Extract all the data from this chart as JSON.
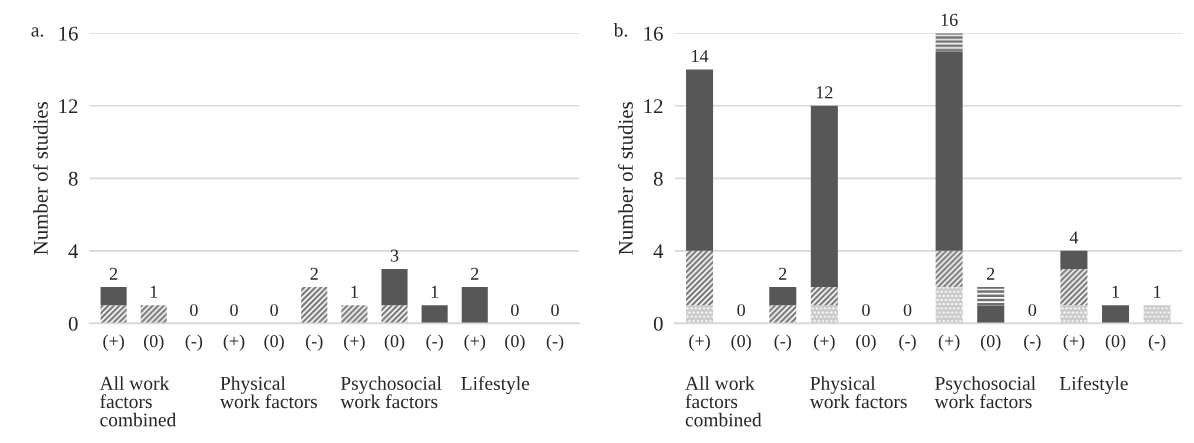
{
  "chart_data": [
    {
      "type": "bar",
      "title": "a.",
      "ylabel": "Number of studies",
      "stacked": true,
      "categories": [
        "(+)",
        "(0)",
        "(-)",
        "(+)",
        "(0)",
        "(-)",
        "(+)",
        "(0)",
        "(-)",
        "(+)",
        "(0)",
        "(-)"
      ],
      "series": [
        {
          "color": "#7a7a7a",
          "values": [
            1,
            1,
            0,
            0,
            0,
            2,
            1,
            1,
            0,
            0,
            0,
            0
          ]
        },
        {
          "color": "#575757",
          "values": [
            1,
            0,
            0,
            0,
            0,
            0,
            0,
            2,
            1,
            2,
            0,
            0
          ]
        }
      ],
      "totals": [
        "2",
        "1",
        "0",
        "0",
        "0",
        "2",
        "1",
        "3",
        "1",
        "2",
        "0",
        "0"
      ],
      "annotations": [
        "All work\nfactors\ncombined",
        "Physical\nwork factors",
        "Psychosocial\nwork factors",
        "Lifestyle"
      ],
      "ylim": [
        0,
        16
      ],
      "yticks": [
        0,
        4,
        8,
        12,
        16
      ],
      "grid": "y",
      "legend": false
    },
    {
      "type": "bar",
      "title": "b.",
      "ylabel": "Number of studies",
      "stacked": true,
      "categories": [
        "(+)",
        "(0)",
        "(-)",
        "(+)",
        "(0)",
        "(-)",
        "(+)",
        "(0)",
        "(-)",
        "(+)",
        "(0)",
        "(-)"
      ],
      "series": [
        {
          "color": "#c8c8c8",
          "values": [
            1,
            0,
            0,
            1,
            0,
            0,
            2,
            0,
            0,
            1,
            0,
            1
          ]
        },
        {
          "color": "#7a7a7a",
          "values": [
            3,
            0,
            1,
            1,
            0,
            0,
            2,
            0,
            0,
            2,
            0,
            0
          ]
        },
        {
          "color": "#575757",
          "values": [
            10,
            0,
            1,
            10,
            0,
            0,
            11,
            1,
            0,
            1,
            1,
            0
          ]
        },
        {
          "color": "#6e6e6e",
          "values": [
            0,
            0,
            0,
            0,
            0,
            0,
            1,
            1,
            0,
            0,
            0,
            0
          ]
        }
      ],
      "totals": [
        "14",
        "0",
        "2",
        "12",
        "0",
        "0",
        "16",
        "2",
        "0",
        "4",
        "1",
        "1"
      ],
      "annotations": [
        "All work\nfactors\ncombined",
        "Physical\nwork factors",
        "Psychosocial\nwork factors",
        "Lifestyle"
      ],
      "ylim": [
        0,
        16
      ],
      "yticks": [
        0,
        4,
        8,
        12,
        16
      ],
      "grid": "y",
      "legend": false
    }
  ]
}
